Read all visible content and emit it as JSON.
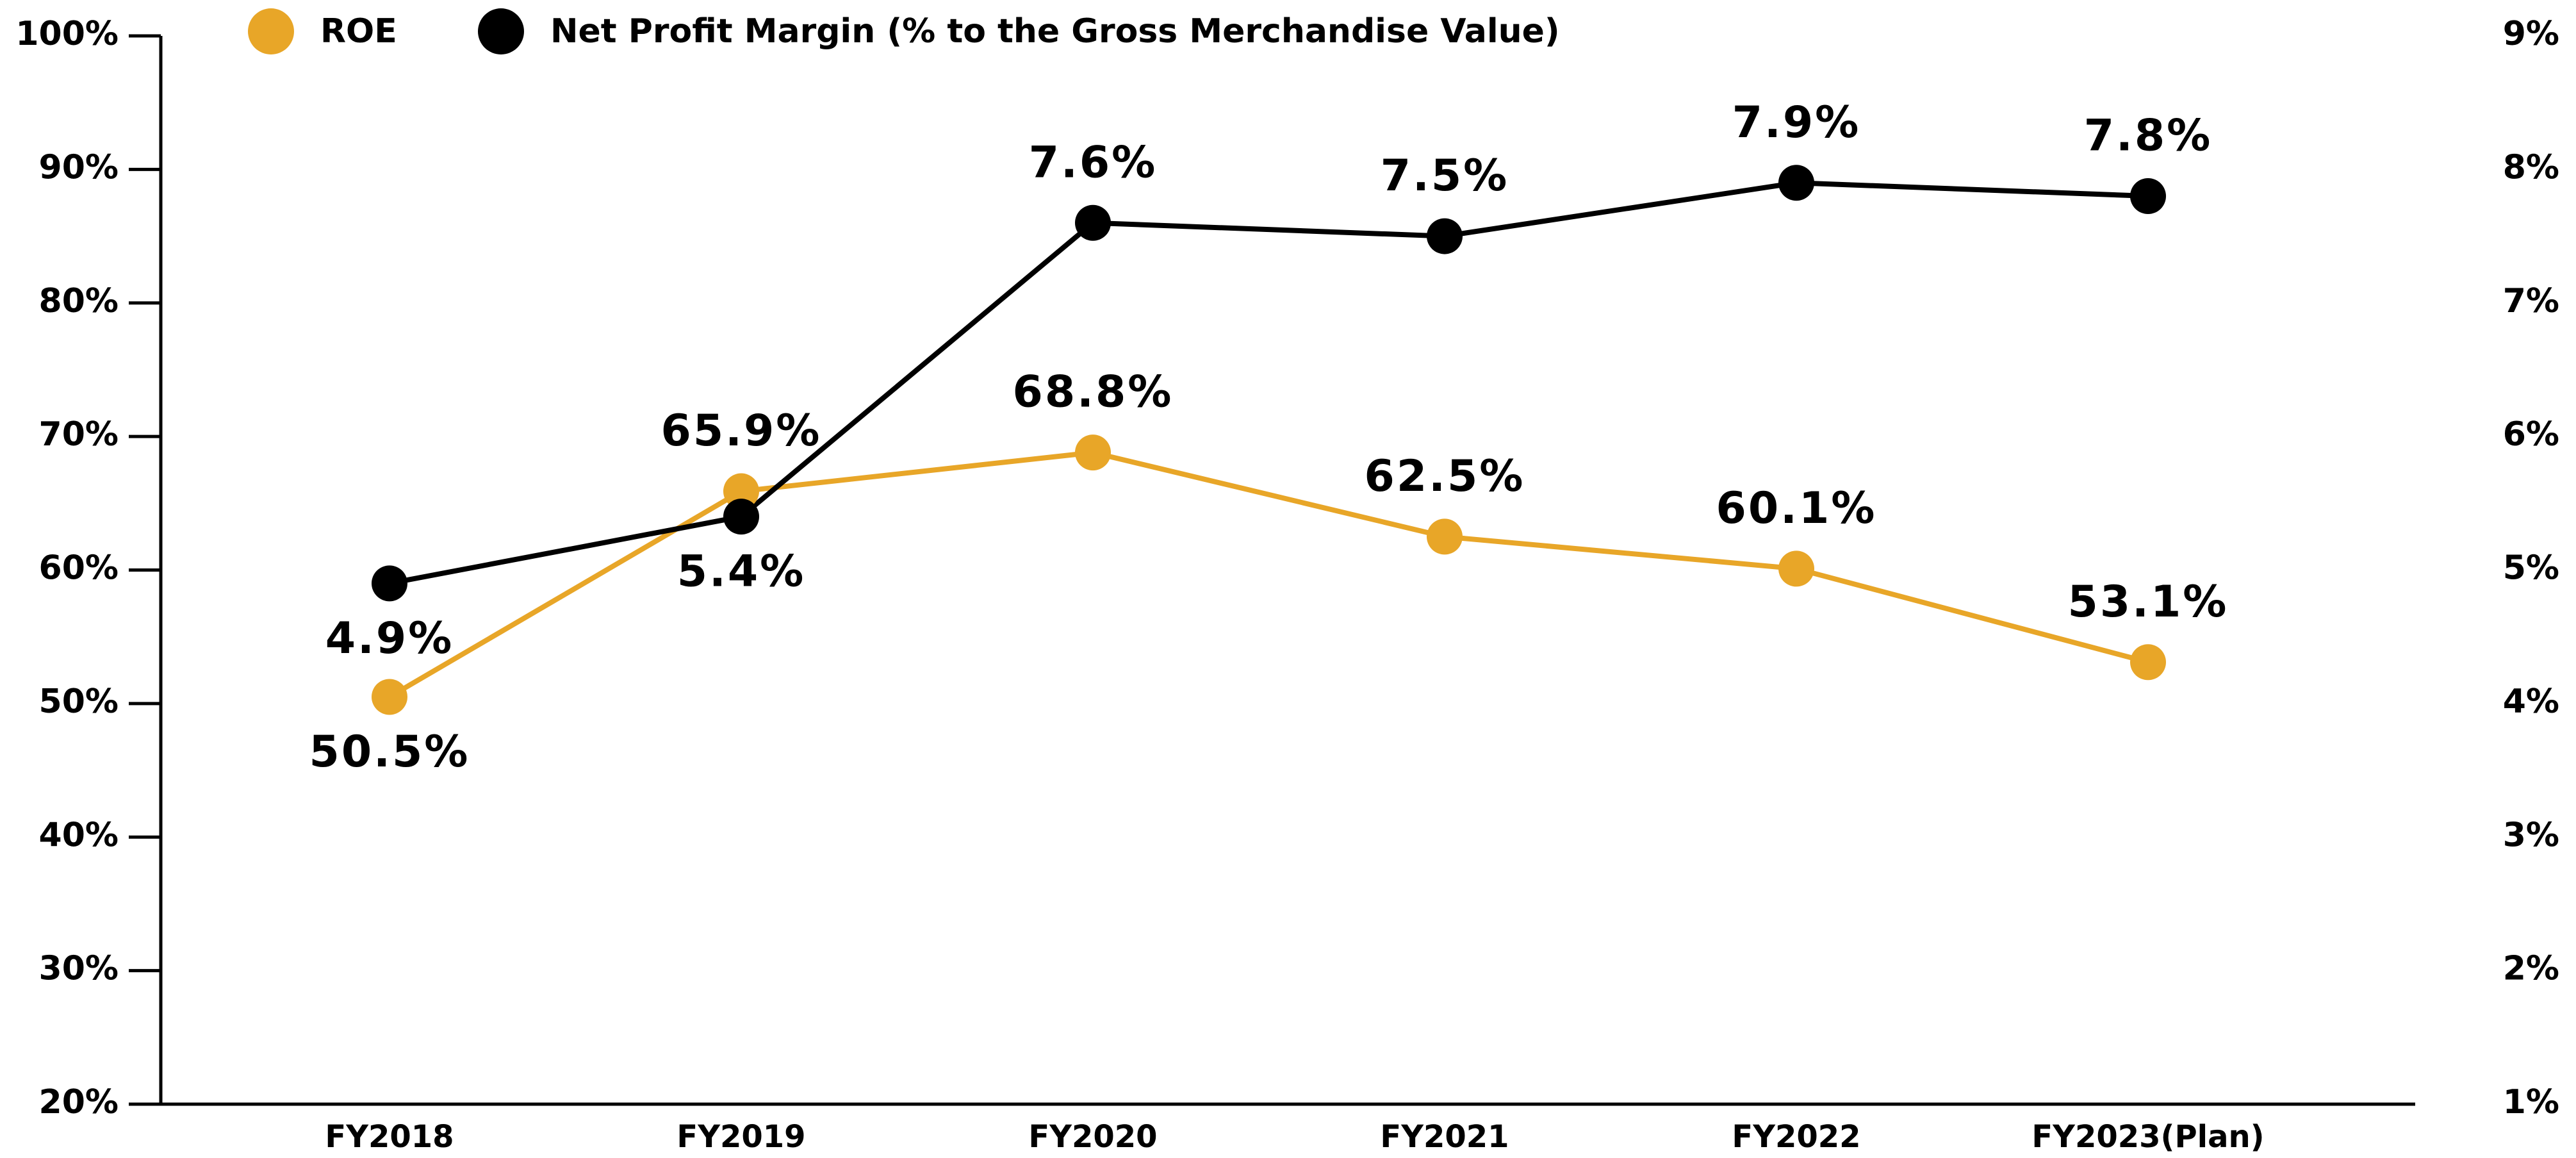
{
  "chart_data": {
    "type": "line",
    "categories": [
      "FY2018",
      "FY2019",
      "FY2020",
      "FY2021",
      "FY2022",
      "FY2023(Plan)"
    ],
    "series": [
      {
        "name": "ROE",
        "color": "#E8A628",
        "values": [
          50.5,
          65.9,
          68.8,
          62.5,
          60.1,
          53.1
        ],
        "value_labels": [
          "50.5%",
          "65.9%",
          "68.8%",
          "62.5%",
          "60.1%",
          "53.1%"
        ]
      },
      {
        "name": "Net Profit Margin (% to the Gross Merchandise Value)",
        "color": "#000000",
        "axis": "y2",
        "values": [
          4.9,
          5.4,
          7.6,
          7.5,
          7.9,
          7.8
        ],
        "value_labels": [
          "4.9%",
          "5.4%",
          "7.6%",
          "7.5%",
          "7.9%",
          "7.8%"
        ]
      }
    ],
    "ylim": [
      20,
      100
    ],
    "yticks": [
      {
        "value": 20,
        "label": "20%"
      },
      {
        "value": 30,
        "label": "30%"
      },
      {
        "value": 40,
        "label": "40%"
      },
      {
        "value": 50,
        "label": "50%"
      },
      {
        "value": 60,
        "label": "60%"
      },
      {
        "value": 70,
        "label": "70%"
      },
      {
        "value": 80,
        "label": "80%"
      },
      {
        "value": 90,
        "label": "90%"
      },
      {
        "value": 100,
        "label": "100%"
      }
    ],
    "y2lim": [
      1,
      9
    ],
    "y2ticks": [
      {
        "value": 1,
        "label": "1%"
      },
      {
        "value": 2,
        "label": "2%"
      },
      {
        "value": 3,
        "label": "3%"
      },
      {
        "value": 4,
        "label": "4%"
      },
      {
        "value": 5,
        "label": "5%"
      },
      {
        "value": 6,
        "label": "6%"
      },
      {
        "value": 7,
        "label": "7%"
      },
      {
        "value": 8,
        "label": "8%"
      },
      {
        "value": 9,
        "label": "9%"
      }
    ],
    "legend": "top-left",
    "grid": false
  }
}
